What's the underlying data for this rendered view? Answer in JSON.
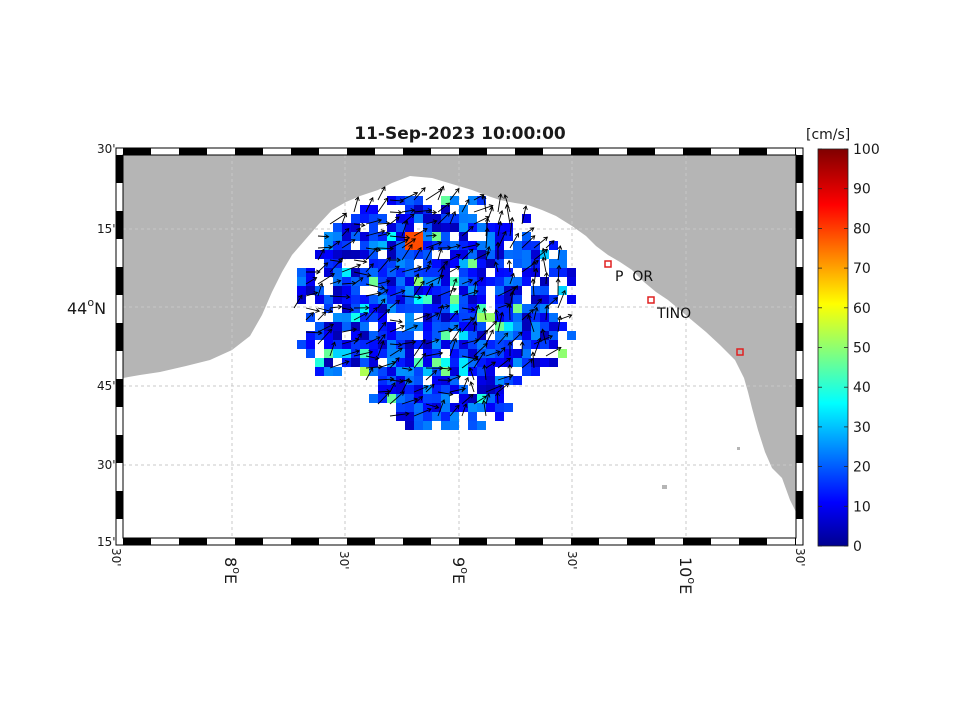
{
  "figure": {
    "title": "11-Sep-2023 10:00:00"
  },
  "colorbar": {
    "unit": "[cm/s]",
    "ticks": [
      "0",
      "10",
      "20",
      "30",
      "40",
      "50",
      "60",
      "70",
      "80",
      "90",
      "100"
    ],
    "colormap": "jet"
  },
  "axes": {
    "lat_ticks": [
      "30'",
      "15'",
      "44°N",
      "45'",
      "30'",
      "15'"
    ],
    "lon_ticks": [
      "30'",
      "8°E",
      "30'",
      "9°E",
      "30'",
      "10°E",
      "30'"
    ]
  },
  "stations": [
    {
      "label": "P  OR",
      "color": "#e02020"
    },
    {
      "label": "TINO",
      "color": "#e02020"
    },
    {
      "label": "",
      "color": "#e02020"
    }
  ],
  "colors": {
    "land": "#b5b5b5",
    "sea": "#ffffff",
    "frame_dark": "#000000",
    "grid": "#c8c8c8"
  }
}
